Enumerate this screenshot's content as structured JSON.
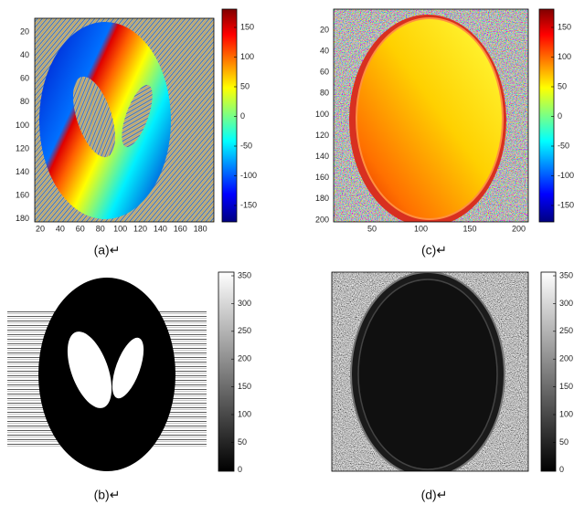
{
  "panels": [
    {
      "label": "(a)↵",
      "yticks": [
        20,
        40,
        60,
        80,
        100,
        120,
        140,
        160,
        180
      ],
      "xticks": [
        20,
        40,
        60,
        80,
        100,
        120,
        140,
        160,
        180
      ],
      "colorbar_ticks": [
        150,
        100,
        50,
        0,
        -50,
        -100,
        -150
      ]
    },
    {
      "label": "(b)↵",
      "colorbar_ticks": [
        350,
        300,
        250,
        200,
        150,
        100,
        50,
        0
      ]
    },
    {
      "label": "(c)↵",
      "yticks": [
        20,
        40,
        60,
        80,
        100,
        120,
        140,
        160,
        180,
        200
      ],
      "xticks": [
        50,
        100,
        150,
        200
      ],
      "colorbar_ticks": [
        150,
        100,
        50,
        0,
        -50,
        -100,
        -150
      ]
    },
    {
      "label": "(d)↵",
      "colorbar_ticks": [
        350,
        300,
        250,
        200,
        150,
        100,
        50,
        0
      ]
    }
  ]
}
